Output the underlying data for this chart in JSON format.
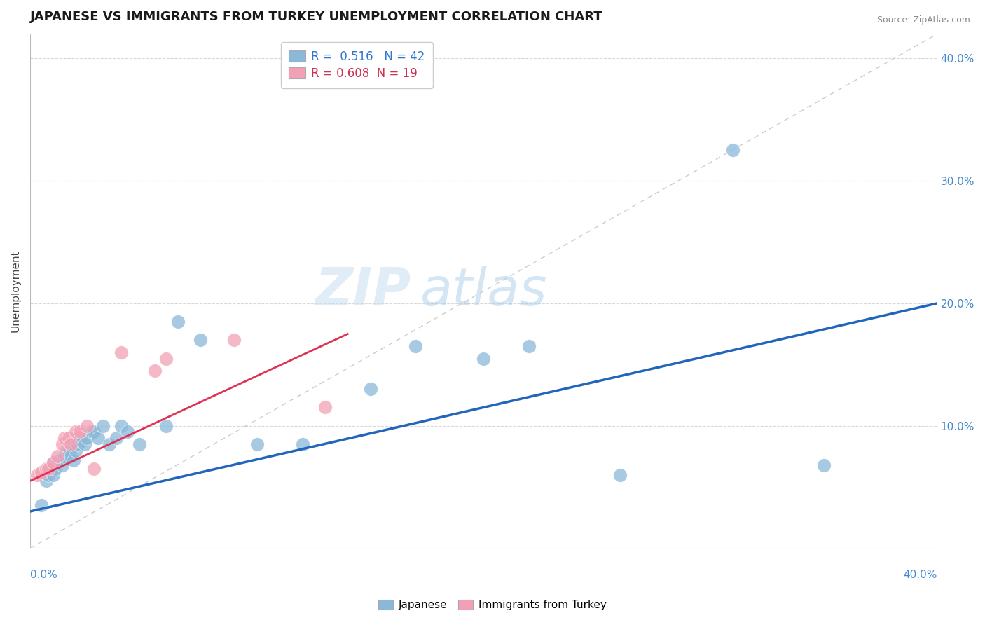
{
  "title": "JAPANESE VS IMMIGRANTS FROM TURKEY UNEMPLOYMENT CORRELATION CHART",
  "source": "Source: ZipAtlas.com",
  "ylabel": "Unemployment",
  "xlim": [
    0.0,
    0.4
  ],
  "ylim": [
    0.0,
    0.42
  ],
  "blue_R": 0.516,
  "blue_N": 42,
  "pink_R": 0.608,
  "pink_N": 19,
  "blue_color": "#8ab8d8",
  "pink_color": "#f2a0b5",
  "blue_line_color": "#2266bb",
  "pink_line_color": "#dd3355",
  "diag_color": "#cccccc",
  "blue_points_x": [
    0.005,
    0.007,
    0.008,
    0.009,
    0.01,
    0.01,
    0.011,
    0.012,
    0.013,
    0.014,
    0.015,
    0.016,
    0.017,
    0.018,
    0.019,
    0.02,
    0.021,
    0.022,
    0.023,
    0.024,
    0.025,
    0.027,
    0.028,
    0.03,
    0.032,
    0.035,
    0.038,
    0.04,
    0.043,
    0.048,
    0.06,
    0.065,
    0.075,
    0.1,
    0.12,
    0.15,
    0.17,
    0.2,
    0.22,
    0.26,
    0.31,
    0.35
  ],
  "blue_points_y": [
    0.035,
    0.055,
    0.06,
    0.065,
    0.06,
    0.07,
    0.065,
    0.07,
    0.072,
    0.068,
    0.075,
    0.08,
    0.08,
    0.075,
    0.072,
    0.08,
    0.085,
    0.09,
    0.088,
    0.085,
    0.09,
    0.095,
    0.095,
    0.09,
    0.1,
    0.085,
    0.09,
    0.1,
    0.095,
    0.085,
    0.1,
    0.185,
    0.17,
    0.085,
    0.085,
    0.13,
    0.165,
    0.155,
    0.165,
    0.06,
    0.325,
    0.068
  ],
  "pink_points_x": [
    0.003,
    0.005,
    0.007,
    0.008,
    0.01,
    0.012,
    0.014,
    0.015,
    0.017,
    0.018,
    0.02,
    0.022,
    0.025,
    0.028,
    0.04,
    0.055,
    0.06,
    0.09,
    0.13
  ],
  "pink_points_y": [
    0.06,
    0.062,
    0.065,
    0.065,
    0.07,
    0.075,
    0.085,
    0.09,
    0.09,
    0.085,
    0.095,
    0.095,
    0.1,
    0.065,
    0.16,
    0.145,
    0.155,
    0.17,
    0.115
  ],
  "blue_line_x": [
    0.0,
    0.4
  ],
  "blue_line_y": [
    0.03,
    0.2
  ],
  "pink_line_x": [
    0.0,
    0.14
  ],
  "pink_line_y": [
    0.055,
    0.175
  ]
}
